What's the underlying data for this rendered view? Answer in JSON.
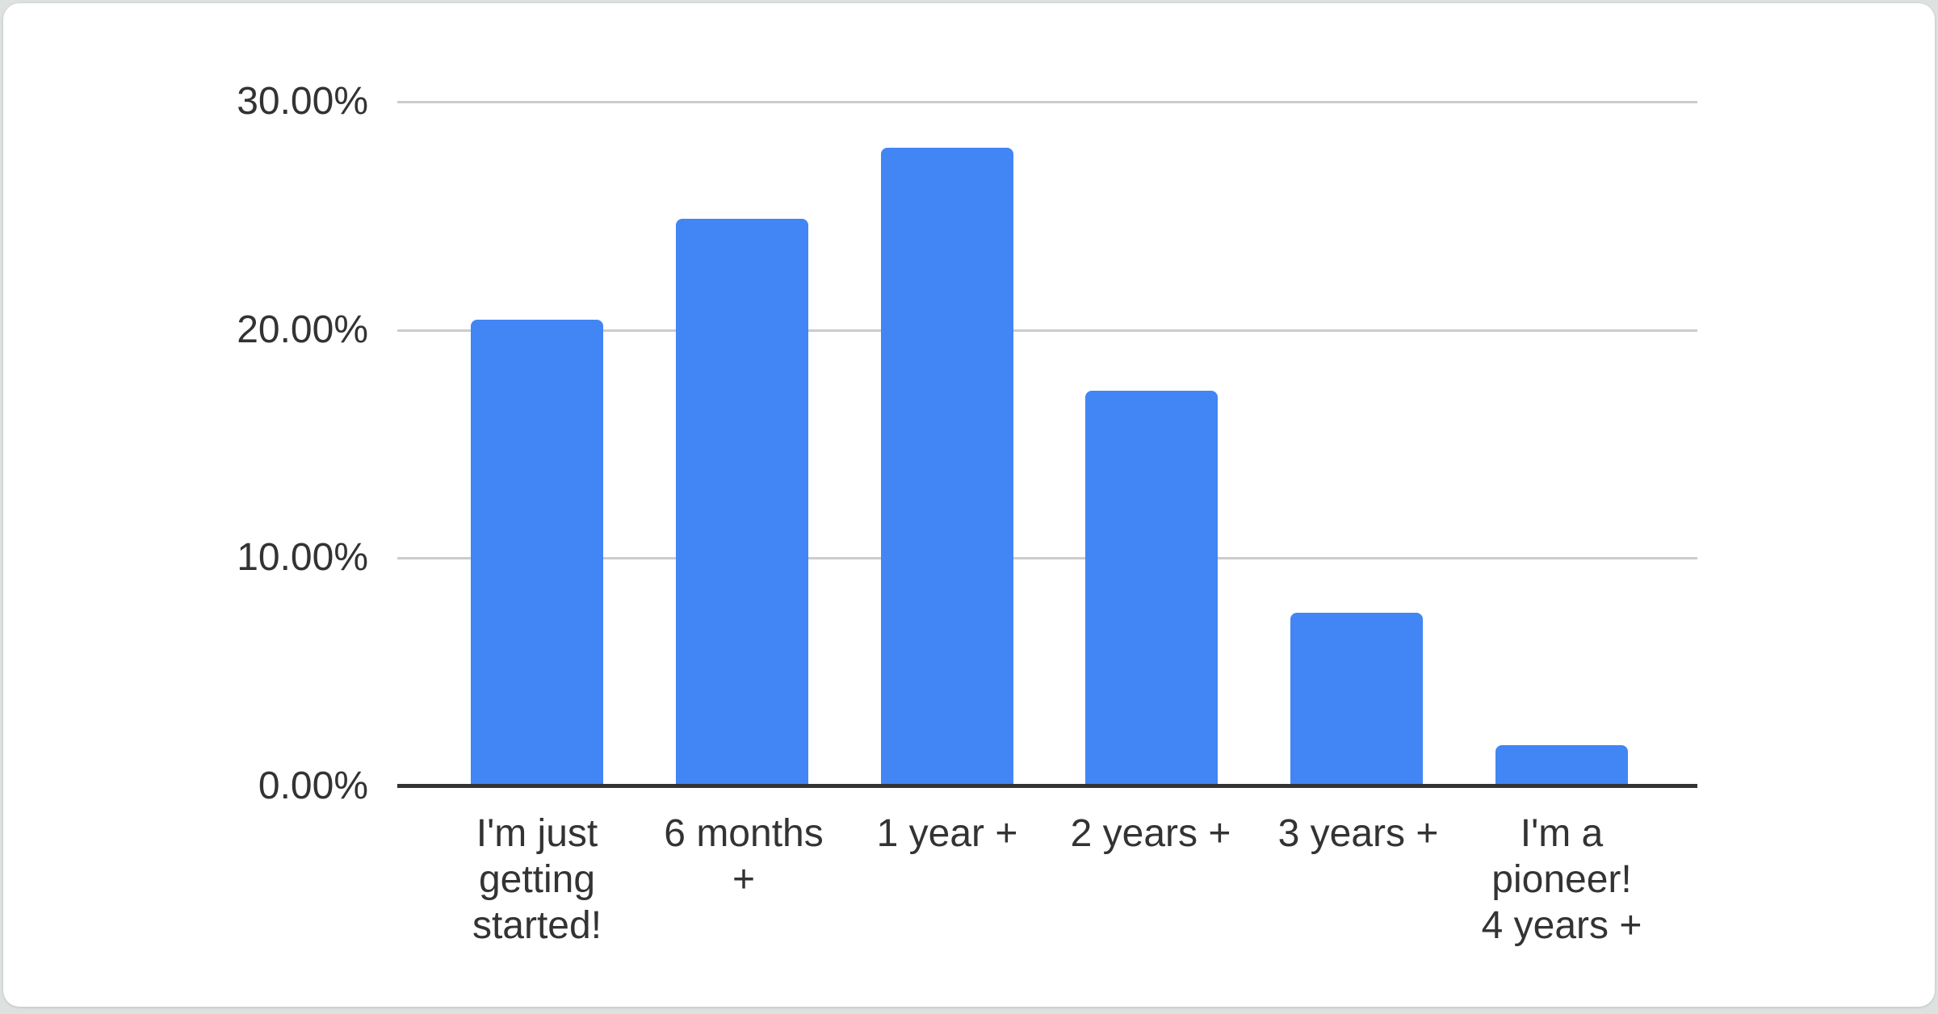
{
  "chart_data": {
    "type": "bar",
    "title": "",
    "xlabel": "",
    "ylabel": "",
    "categories": [
      "I'm just getting started!",
      "6 months +",
      "1 year +",
      "2 years +",
      "3 years +",
      "I'm a pioneer! 4 years +"
    ],
    "category_lines": [
      [
        "I'm just",
        "getting",
        "started!"
      ],
      [
        "6 months",
        "+"
      ],
      [
        "1 year +"
      ],
      [
        "2 years +"
      ],
      [
        "3 years +"
      ],
      [
        "I'm a",
        "pioneer!",
        "4 years +"
      ]
    ],
    "values": [
      20.4,
      24.8,
      27.9,
      17.3,
      7.6,
      1.8
    ],
    "unit": "%",
    "ylim": [
      0,
      30
    ],
    "yticks": [
      "0.00%",
      "10.00%",
      "20.00%",
      "30.00%"
    ],
    "grid": true,
    "legend": "none",
    "colors": {
      "bar": "#4285f4",
      "axis_line": "#333333",
      "gridline": "#cccccc",
      "text": "#333333",
      "card_background": "#ffffff",
      "page_background": "#dde2e0"
    }
  }
}
